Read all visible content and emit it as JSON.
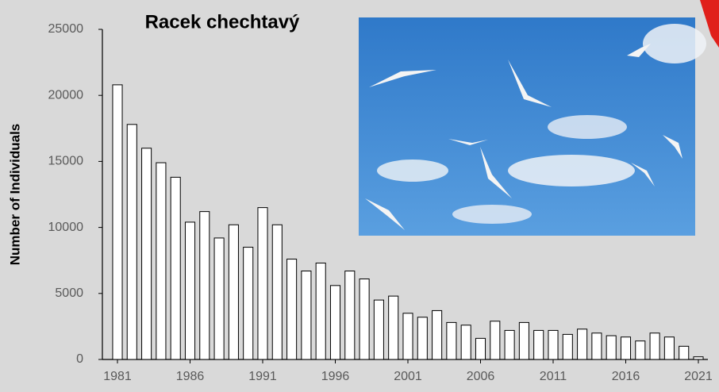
{
  "chart_data": {
    "type": "bar",
    "title": "Racek chechtavý",
    "y_label": "Number of Individuals",
    "x": [
      1981,
      1982,
      1983,
      1984,
      1985,
      1986,
      1987,
      1988,
      1989,
      1990,
      1991,
      1992,
      1993,
      1994,
      1995,
      1996,
      1997,
      1998,
      1999,
      2000,
      2001,
      2002,
      2003,
      2004,
      2005,
      2006,
      2007,
      2008,
      2009,
      2010,
      2011,
      2012,
      2013,
      2014,
      2015,
      2016,
      2017,
      2018,
      2019,
      2020,
      2021
    ],
    "values": [
      20800,
      17800,
      16000,
      14900,
      13800,
      10400,
      11200,
      9200,
      10200,
      8500,
      11500,
      10200,
      7600,
      6700,
      7300,
      5600,
      6700,
      6100,
      4500,
      4800,
      3500,
      3200,
      3700,
      2800,
      2600,
      1600,
      2900,
      2200,
      2800,
      2200,
      2200,
      1900,
      2300,
      2000,
      1800,
      1700,
      1400,
      2000,
      1700,
      1000,
      200
    ],
    "color": "#ffffff",
    "xlim": [
      1980,
      2022
    ],
    "xticks": [
      1981,
      1986,
      1991,
      1996,
      2001,
      2006,
      2011,
      2016,
      2021
    ],
    "ylim": [
      0,
      25000
    ],
    "yticks": [
      0,
      5000,
      10000,
      15000,
      20000,
      25000
    ]
  }
}
